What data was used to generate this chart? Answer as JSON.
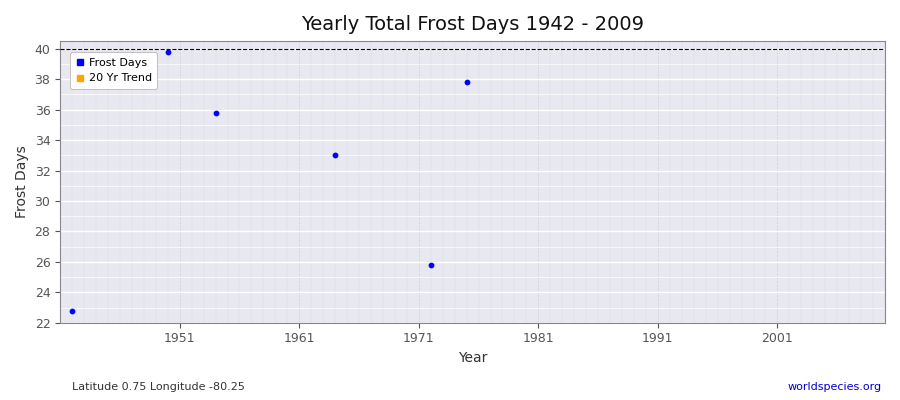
{
  "title": "Yearly Total Frost Days 1942 - 2009",
  "xlabel": "Year",
  "ylabel": "Frost Days",
  "subtitle": "Latitude 0.75 Longitude -80.25",
  "watermark": "worldspecies.org",
  "xlim": [
    1942,
    2009
  ],
  "ylim": [
    22,
    40.5
  ],
  "yticks": [
    22,
    24,
    26,
    28,
    30,
    32,
    34,
    36,
    38,
    40
  ],
  "xticks": [
    1951,
    1961,
    1971,
    1981,
    1991,
    2001
  ],
  "frost_days_x": [
    1942,
    1950,
    1954,
    1964,
    1972,
    1975
  ],
  "frost_days_y": [
    22.8,
    39.8,
    35.8,
    33.0,
    25.8,
    37.8
  ],
  "dot_color": "#0000ff",
  "trend_color": "#FFA500",
  "dashed_line_y": 40,
  "plot_bg_color": "#e8e8f0",
  "fig_bg_color": "#ffffff",
  "grid_color": "#ffffff",
  "grid_minor_color": "#d0d0e0",
  "title_fontsize": 14,
  "axis_label_fontsize": 10,
  "tick_fontsize": 9,
  "legend_fontsize": 8,
  "dot_size": 10
}
